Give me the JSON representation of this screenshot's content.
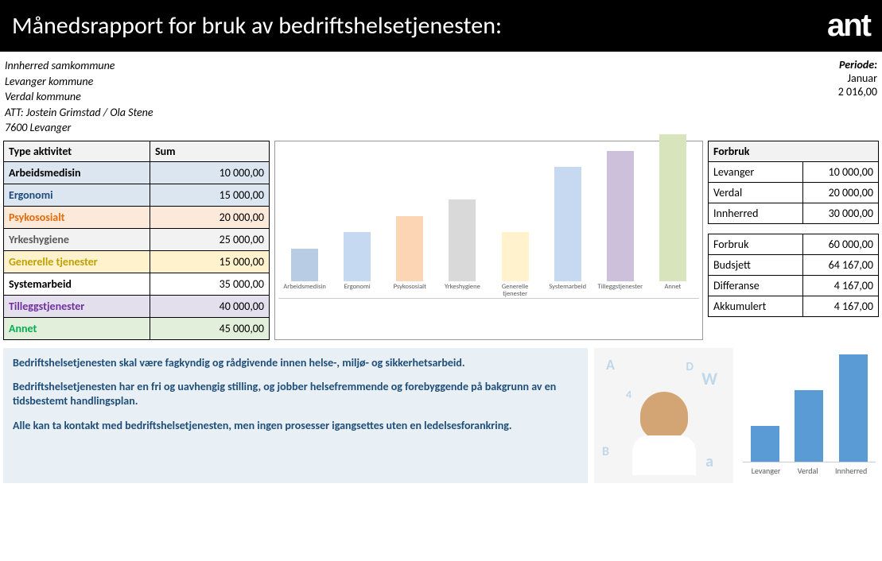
{
  "header": {
    "title": "Månedsrapport for bruk av bedriftshelsetjenesten:",
    "logo": "ant"
  },
  "address": {
    "line1": "Innherred samkommune",
    "line2": "Levanger kommune",
    "line3": "Verdal kommune",
    "line4": "ATT: Jostein Grimstad / Ola Stene",
    "line5": "7600 Levanger"
  },
  "period": {
    "label": "Periode:",
    "month": "Januar",
    "year": "2 016,00"
  },
  "activity_table": {
    "headers": [
      "Type aktivitet",
      "Sum"
    ],
    "rows": [
      {
        "label": "Arbeidsmedisin",
        "value": "10 000,00",
        "label_color": "#000000",
        "row_bg": "#dce6f1"
      },
      {
        "label": "Ergonomi",
        "value": "15 000,00",
        "label_color": "#1f497d",
        "row_bg": "#dce6f1"
      },
      {
        "label": "Psykososialt",
        "value": "20 000,00",
        "label_color": "#e26b0a",
        "row_bg": "#fde9d9"
      },
      {
        "label": "Yrkeshygiene",
        "value": "25 000,00",
        "label_color": "#595959",
        "row_bg": "#f2f2f2"
      },
      {
        "label": "Generelle tjenester",
        "value": "15 000,00",
        "label_color": "#c0a000",
        "row_bg": "#fff2cc"
      },
      {
        "label": "Systemarbeid",
        "value": "35 000,00",
        "label_color": "#000000",
        "row_bg": "#ffffff"
      },
      {
        "label": "Tilleggstjenester",
        "value": "40 000,00",
        "label_color": "#7030a0",
        "row_bg": "#e4dfec"
      },
      {
        "label": "Annet",
        "value": "45 000,00",
        "label_color": "#00b050",
        "row_bg": "#e2efda"
      }
    ]
  },
  "main_chart": {
    "type": "bar",
    "ylim": [
      0,
      45000
    ],
    "bars": [
      {
        "label": "Arbeidsmedisin",
        "value": 10000,
        "color": "#b8cce4"
      },
      {
        "label": "Ergonomi",
        "value": 15000,
        "color": "#c5d9f1"
      },
      {
        "label": "Psykososialt",
        "value": 20000,
        "color": "#fcd5b4"
      },
      {
        "label": "Yrkeshygiene",
        "value": 25000,
        "color": "#d9d9d9"
      },
      {
        "label": "Generelle tjenester",
        "value": 15000,
        "color": "#fff2cc"
      },
      {
        "label": "Systemarbeid",
        "value": 35000,
        "color": "#c6d9f0"
      },
      {
        "label": "Tilleggstjenester",
        "value": 40000,
        "color": "#ccc0da"
      },
      {
        "label": "Annet",
        "value": 45000,
        "color": "#d8e4bc"
      }
    ]
  },
  "forbruk_table": {
    "header": "Forbruk",
    "rows": [
      {
        "label": "Levanger",
        "value": "10 000,00"
      },
      {
        "label": "Verdal",
        "value": "20 000,00"
      },
      {
        "label": "Innherred",
        "value": "30 000,00"
      }
    ]
  },
  "summary_table": {
    "rows": [
      {
        "label": "Forbruk",
        "value": "60 000,00"
      },
      {
        "label": "Budsjett",
        "value": "64 167,00"
      },
      {
        "label": "Differanse",
        "value": "4 167,00"
      },
      {
        "label": "Akkumulert",
        "value": "4 167,00"
      }
    ]
  },
  "info": {
    "p1": "Bedriftshelsetjenesten skal være fagkyndig og rådgivende innen helse-, miljø- og sikkerhetsarbeid.",
    "p2": "Bedriftshelsetjenesten har en fri og uavhengig stilling, og jobber helsefremmende og forebyggende på bakgrunn av en tidsbestemt handlingsplan.",
    "p3": "Alle kan ta kontakt med bedriftshelsetjenesten, men ingen prosesser igangsettes uten en ledelsesforankring."
  },
  "mini_chart": {
    "type": "bar",
    "color": "#5b9bd5",
    "ylim": [
      0,
      30000
    ],
    "bars": [
      {
        "label": "Levanger",
        "value": 10000
      },
      {
        "label": "Verdal",
        "value": 20000
      },
      {
        "label": "Innherred",
        "value": 30000
      }
    ]
  }
}
